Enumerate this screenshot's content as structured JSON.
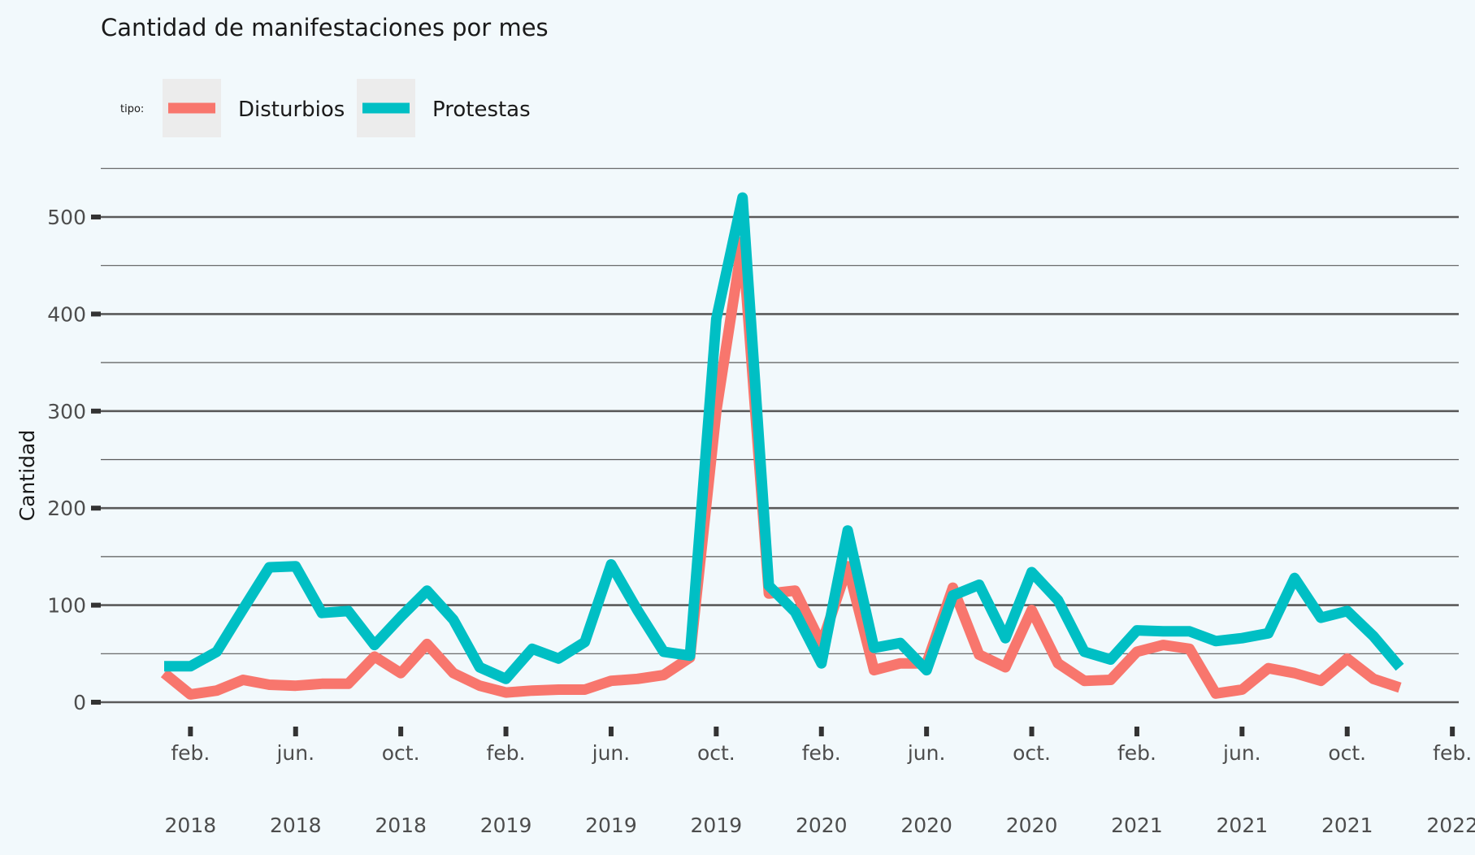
{
  "chart_data": {
    "type": "line",
    "title": "Cantidad de manifestaciones por mes",
    "xlabel": "",
    "ylabel": "Cantidad",
    "ylim": [
      0,
      525
    ],
    "yticks": [
      0,
      100,
      200,
      300,
      400,
      500
    ],
    "grid": true,
    "legend": {
      "title": "tipo:",
      "position": "top-left"
    },
    "x_start": "2018-01",
    "x": [
      "2018-01",
      "2018-02",
      "2018-03",
      "2018-04",
      "2018-05",
      "2018-06",
      "2018-07",
      "2018-08",
      "2018-09",
      "2018-10",
      "2018-11",
      "2018-12",
      "2019-01",
      "2019-02",
      "2019-03",
      "2019-04",
      "2019-05",
      "2019-06",
      "2019-07",
      "2019-08",
      "2019-09",
      "2019-10",
      "2019-11",
      "2019-12",
      "2020-01",
      "2020-02",
      "2020-03",
      "2020-04",
      "2020-05",
      "2020-06",
      "2020-07",
      "2020-08",
      "2020-09",
      "2020-10",
      "2020-11",
      "2020-12",
      "2021-01",
      "2021-02",
      "2021-03",
      "2021-04",
      "2021-05",
      "2021-06",
      "2021-07",
      "2021-08",
      "2021-09",
      "2021-10",
      "2021-11",
      "2021-12"
    ],
    "xticks": [
      {
        "month": "feb.",
        "year": "2018",
        "date": "2018-02"
      },
      {
        "month": "jun.",
        "year": "2018",
        "date": "2018-06"
      },
      {
        "month": "oct.",
        "year": "2018",
        "date": "2018-10"
      },
      {
        "month": "feb.",
        "year": "2019",
        "date": "2019-02"
      },
      {
        "month": "jun.",
        "year": "2019",
        "date": "2019-06"
      },
      {
        "month": "oct.",
        "year": "2019",
        "date": "2019-10"
      },
      {
        "month": "feb.",
        "year": "2020",
        "date": "2020-02"
      },
      {
        "month": "jun.",
        "year": "2020",
        "date": "2020-06"
      },
      {
        "month": "oct.",
        "year": "2020",
        "date": "2020-10"
      },
      {
        "month": "feb.",
        "year": "2021",
        "date": "2021-02"
      },
      {
        "month": "jun.",
        "year": "2021",
        "date": "2021-06"
      },
      {
        "month": "oct.",
        "year": "2021",
        "date": "2021-10"
      },
      {
        "month": "feb.",
        "year": "2022",
        "date": "2022-02"
      }
    ],
    "series": [
      {
        "name": "Disturbios",
        "color": "#F8766D",
        "values": [
          30,
          8,
          12,
          23,
          18,
          17,
          19,
          19,
          47,
          30,
          60,
          30,
          17,
          10,
          12,
          13,
          13,
          22,
          24,
          28,
          46,
          300,
          475,
          112,
          115,
          60,
          140,
          33,
          40,
          40,
          118,
          49,
          36,
          95,
          40,
          22,
          23,
          52,
          59,
          55,
          9,
          13,
          35,
          30,
          22,
          45,
          24,
          15
        ]
      },
      {
        "name": "Protestas",
        "color": "#00BFC4",
        "values": [
          37,
          37,
          52,
          96,
          139,
          140,
          92,
          94,
          59,
          88,
          115,
          85,
          36,
          24,
          55,
          45,
          62,
          142,
          95,
          52,
          48,
          395,
          520,
          120,
          93,
          40,
          177,
          56,
          61,
          33,
          110,
          121,
          66,
          134,
          105,
          52,
          44,
          74,
          73,
          73,
          63,
          66,
          71,
          128,
          87,
          94,
          68,
          36
        ]
      }
    ]
  }
}
